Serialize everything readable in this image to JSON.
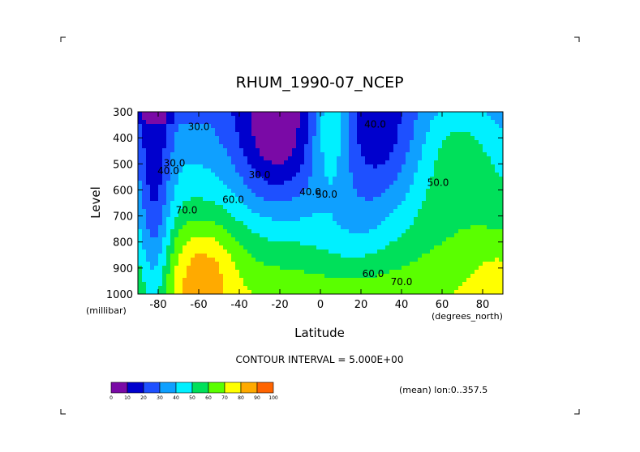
{
  "chart_data": {
    "type": "heatmap",
    "title": "RHUM_1990-07_NCEP",
    "xlabel": "Latitude",
    "ylabel": "Level",
    "x_units": "(degrees_north)",
    "y_units": "(millibar)",
    "xlim": [
      -90,
      90
    ],
    "ylim": [
      1000,
      300
    ],
    "x_ticks": [
      -80,
      -60,
      -40,
      -20,
      0,
      20,
      40,
      60,
      80
    ],
    "x_tick_labels": [
      "-80",
      "-60",
      "-40",
      "-20",
      "0",
      "20",
      "40",
      "60",
      "80"
    ],
    "y_ticks": [
      300,
      400,
      500,
      600,
      700,
      800,
      900,
      1000
    ],
    "y_tick_labels": [
      "300",
      "400",
      "500",
      "600",
      "700",
      "800",
      "900",
      "1000"
    ],
    "contour_interval_text": "CONTOUR INTERVAL = 5.000E+00",
    "subtitle_right": "(mean) lon:0..357.5",
    "colorbar": {
      "labels": [
        "0",
        "10",
        "20",
        "30",
        "40",
        "50",
        "60",
        "70",
        "80",
        "90",
        "100"
      ],
      "colors": [
        "#7a0aa6",
        "#0000cd",
        "#1e50ff",
        "#0fa0ff",
        "#00f0ff",
        "#00e05a",
        "#5aff00",
        "#ffff00",
        "#ffaa00",
        "#ff6400",
        "#ff0000"
      ]
    },
    "contour_labels": [
      {
        "text": "30.0",
        "lat": -60,
        "lev": 370
      },
      {
        "text": "40.0",
        "lat": 27,
        "lev": 360
      },
      {
        "text": "30.0",
        "lat": -30,
        "lev": 555
      },
      {
        "text": "50.0",
        "lat": 58,
        "lev": 585
      },
      {
        "text": "40.0",
        "lat": -5,
        "lev": 620
      },
      {
        "text": "50.0",
        "lat": 3,
        "lev": 630
      },
      {
        "text": "60.0",
        "lat": -43,
        "lev": 650
      },
      {
        "text": "70.0",
        "lat": -66,
        "lev": 690
      },
      {
        "text": "60.0",
        "lat": 26,
        "lev": 935
      },
      {
        "text": "70.0",
        "lat": 40,
        "lev": 965
      },
      {
        "text": "30.0",
        "lat": -72,
        "lev": 510
      },
      {
        "text": "40.0",
        "lat": -75,
        "lev": 540
      }
    ]
  }
}
